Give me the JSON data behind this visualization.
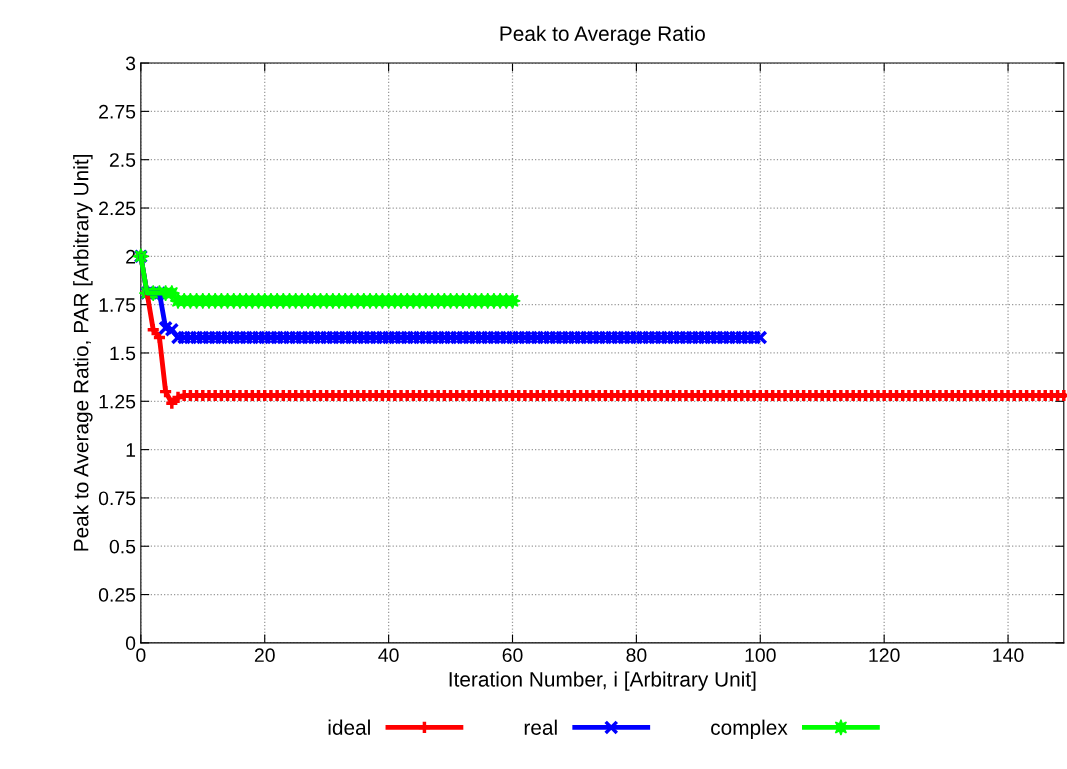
{
  "chart_data": {
    "type": "line",
    "title": "Peak to Average Ratio",
    "xlabel": "Iteration Number, i [Arbitrary Unit]",
    "ylabel": "Peak to Average Ratio, PAR [Arbitrary Unit]",
    "xlim": [
      0,
      149
    ],
    "xticks": [
      0,
      20,
      40,
      60,
      80,
      100,
      120,
      140
    ],
    "ylim": [
      0,
      3
    ],
    "yticks": [
      0,
      0.25,
      0.5,
      0.75,
      1,
      1.25,
      1.5,
      1.75,
      2,
      2.25,
      2.5,
      2.75,
      3
    ],
    "grid": true,
    "legend": "bottom",
    "line_style": "solid",
    "series": [
      {
        "name": "ideal",
        "color": "#ff0000",
        "marker": "plus",
        "x": [
          0,
          1,
          2,
          3,
          4,
          5,
          6,
          7,
          8,
          9,
          10,
          11,
          12,
          13,
          14,
          15,
          16,
          17,
          18,
          19,
          20,
          21,
          22,
          23,
          24,
          25,
          26,
          27,
          28,
          29,
          30,
          31,
          32,
          33,
          34,
          35,
          36,
          37,
          38,
          39,
          40,
          41,
          42,
          43,
          44,
          45,
          46,
          47,
          48,
          49,
          50,
          51,
          52,
          53,
          54,
          55,
          56,
          57,
          58,
          59,
          60,
          61,
          62,
          63,
          64,
          65,
          66,
          67,
          68,
          69,
          70,
          71,
          72,
          73,
          74,
          75,
          76,
          77,
          78,
          79,
          80,
          81,
          82,
          83,
          84,
          85,
          86,
          87,
          88,
          89,
          90,
          91,
          92,
          93,
          94,
          95,
          96,
          97,
          98,
          99,
          100,
          101,
          102,
          103,
          104,
          105,
          106,
          107,
          108,
          109,
          110,
          111,
          112,
          113,
          114,
          115,
          116,
          117,
          118,
          119,
          120,
          121,
          122,
          123,
          124,
          125,
          126,
          127,
          128,
          129,
          130,
          131,
          132,
          133,
          134,
          135,
          136,
          137,
          138,
          139,
          140,
          141,
          142,
          143,
          144,
          145,
          146,
          147,
          148,
          149
        ],
        "values": [
          2.0,
          1.81,
          1.62,
          1.58,
          1.3,
          1.24,
          1.27,
          1.28,
          1.28,
          1.28,
          1.28,
          1.28,
          1.28,
          1.28,
          1.28,
          1.28,
          1.28,
          1.28,
          1.28,
          1.28,
          1.28,
          1.28,
          1.28,
          1.28,
          1.28,
          1.28,
          1.28,
          1.28,
          1.28,
          1.28,
          1.28,
          1.28,
          1.28,
          1.28,
          1.28,
          1.28,
          1.28,
          1.28,
          1.28,
          1.28,
          1.28,
          1.28,
          1.28,
          1.28,
          1.28,
          1.28,
          1.28,
          1.28,
          1.28,
          1.28,
          1.28,
          1.28,
          1.28,
          1.28,
          1.28,
          1.28,
          1.28,
          1.28,
          1.28,
          1.28,
          1.28,
          1.28,
          1.28,
          1.28,
          1.28,
          1.28,
          1.28,
          1.28,
          1.28,
          1.28,
          1.28,
          1.28,
          1.28,
          1.28,
          1.28,
          1.28,
          1.28,
          1.28,
          1.28,
          1.28,
          1.28,
          1.28,
          1.28,
          1.28,
          1.28,
          1.28,
          1.28,
          1.28,
          1.28,
          1.28,
          1.28,
          1.28,
          1.28,
          1.28,
          1.28,
          1.28,
          1.28,
          1.28,
          1.28,
          1.28,
          1.28,
          1.28,
          1.28,
          1.28,
          1.28,
          1.28,
          1.28,
          1.28,
          1.28,
          1.28,
          1.28,
          1.28,
          1.28,
          1.28,
          1.28,
          1.28,
          1.28,
          1.28,
          1.28,
          1.28,
          1.28,
          1.28,
          1.28,
          1.28,
          1.28,
          1.28,
          1.28,
          1.28,
          1.28,
          1.28,
          1.28,
          1.28,
          1.28,
          1.28,
          1.28,
          1.28,
          1.28,
          1.28,
          1.28,
          1.28,
          1.28,
          1.28,
          1.28,
          1.28,
          1.28,
          1.28,
          1.28,
          1.28,
          1.28,
          1.28
        ]
      },
      {
        "name": "real",
        "color": "#0000ff",
        "marker": "cross",
        "x": [
          0,
          1,
          2,
          3,
          4,
          5,
          6,
          7,
          8,
          9,
          10,
          11,
          12,
          13,
          14,
          15,
          16,
          17,
          18,
          19,
          20,
          21,
          22,
          23,
          24,
          25,
          26,
          27,
          28,
          29,
          30,
          31,
          32,
          33,
          34,
          35,
          36,
          37,
          38,
          39,
          40,
          41,
          42,
          43,
          44,
          45,
          46,
          47,
          48,
          49,
          50,
          51,
          52,
          53,
          54,
          55,
          56,
          57,
          58,
          59,
          60,
          61,
          62,
          63,
          64,
          65,
          66,
          67,
          68,
          69,
          70,
          71,
          72,
          73,
          74,
          75,
          76,
          77,
          78,
          79,
          80,
          81,
          82,
          83,
          84,
          85,
          86,
          87,
          88,
          89,
          90,
          91,
          92,
          93,
          94,
          95,
          96,
          97,
          98,
          99,
          100
        ],
        "values": [
          2.0,
          1.81,
          1.81,
          1.81,
          1.63,
          1.62,
          1.58,
          1.58,
          1.58,
          1.58,
          1.58,
          1.58,
          1.58,
          1.58,
          1.58,
          1.58,
          1.58,
          1.58,
          1.58,
          1.58,
          1.58,
          1.58,
          1.58,
          1.58,
          1.58,
          1.58,
          1.58,
          1.58,
          1.58,
          1.58,
          1.58,
          1.58,
          1.58,
          1.58,
          1.58,
          1.58,
          1.58,
          1.58,
          1.58,
          1.58,
          1.58,
          1.58,
          1.58,
          1.58,
          1.58,
          1.58,
          1.58,
          1.58,
          1.58,
          1.58,
          1.58,
          1.58,
          1.58,
          1.58,
          1.58,
          1.58,
          1.58,
          1.58,
          1.58,
          1.58,
          1.58,
          1.58,
          1.58,
          1.58,
          1.58,
          1.58,
          1.58,
          1.58,
          1.58,
          1.58,
          1.58,
          1.58,
          1.58,
          1.58,
          1.58,
          1.58,
          1.58,
          1.58,
          1.58,
          1.58,
          1.58,
          1.58,
          1.58,
          1.58,
          1.58,
          1.58,
          1.58,
          1.58,
          1.58,
          1.58,
          1.58,
          1.58,
          1.58,
          1.58,
          1.58,
          1.58,
          1.58,
          1.58,
          1.58,
          1.58,
          1.58
        ]
      },
      {
        "name": "complex",
        "color": "#00ff00",
        "marker": "star",
        "x": [
          0,
          1,
          2,
          3,
          4,
          5,
          6,
          7,
          8,
          9,
          10,
          11,
          12,
          13,
          14,
          15,
          16,
          17,
          18,
          19,
          20,
          21,
          22,
          23,
          24,
          25,
          26,
          27,
          28,
          29,
          30,
          31,
          32,
          33,
          34,
          35,
          36,
          37,
          38,
          39,
          40,
          41,
          42,
          43,
          44,
          45,
          46,
          47,
          48,
          49,
          50,
          51,
          52,
          53,
          54,
          55,
          56,
          57,
          58,
          59,
          60
        ],
        "values": [
          2.0,
          1.81,
          1.81,
          1.81,
          1.81,
          1.81,
          1.77,
          1.77,
          1.77,
          1.77,
          1.77,
          1.77,
          1.77,
          1.77,
          1.77,
          1.77,
          1.77,
          1.77,
          1.77,
          1.77,
          1.77,
          1.77,
          1.77,
          1.77,
          1.77,
          1.77,
          1.77,
          1.77,
          1.77,
          1.77,
          1.77,
          1.77,
          1.77,
          1.77,
          1.77,
          1.77,
          1.77,
          1.77,
          1.77,
          1.77,
          1.77,
          1.77,
          1.77,
          1.77,
          1.77,
          1.77,
          1.77,
          1.77,
          1.77,
          1.77,
          1.77,
          1.77,
          1.77,
          1.77,
          1.77,
          1.77,
          1.77,
          1.77,
          1.77,
          1.77,
          1.77
        ]
      }
    ]
  }
}
